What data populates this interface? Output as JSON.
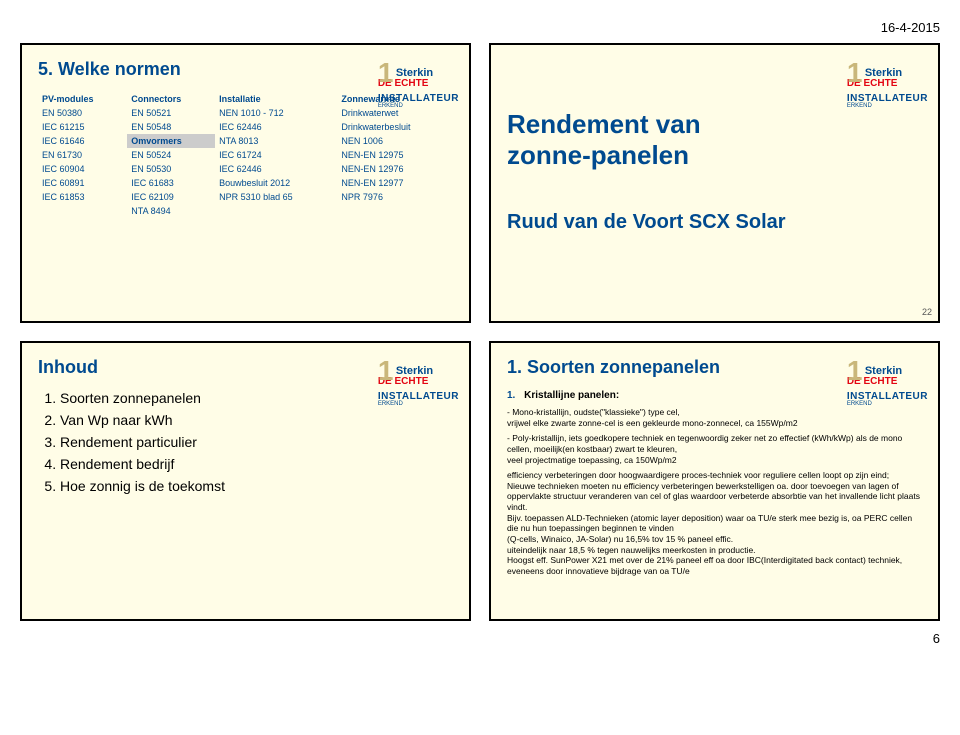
{
  "header": {
    "date": "16-4-2015"
  },
  "logo": {
    "sterkin": "Sterkin",
    "erkend": "ERKEND",
    "line1": "DE ECHTE",
    "line2": "INSTALLATEUR"
  },
  "slide1": {
    "title": "5. Welke normen",
    "columns": [
      "PV-modules",
      "Connectors",
      "Installatie",
      "Zonnewarmte"
    ],
    "rows": [
      [
        "EN 50380",
        "EN 50521",
        "NEN 1010 - 712",
        "Drinkwaterwet"
      ],
      [
        "IEC 61215",
        "EN 50548",
        "IEC 62446",
        "Drinkwaterbesluit"
      ],
      [
        "IEC 61646",
        "Omvormers",
        "NTA 8013",
        "NEN 1006"
      ],
      [
        "EN 61730",
        "EN 50524",
        "IEC 61724",
        "NEN-EN 12975"
      ],
      [
        "IEC 60904",
        "EN 50530",
        "IEC 62446",
        "NEN-EN 12976"
      ],
      [
        "IEC 60891",
        "IEC 61683",
        "Bouwbesluit 2012",
        "NEN-EN 12977"
      ],
      [
        "IEC 61853",
        "IEC 62109",
        "NPR 5310 blad 65",
        "NPR 7976"
      ],
      [
        "",
        "NTA 8494",
        "",
        ""
      ]
    ],
    "highlight_cell": "Omvormers"
  },
  "slide2": {
    "title_line1": "Rendement van",
    "title_line2": "zonne-panelen",
    "subtitle": "Ruud van de Voort SCX Solar",
    "page": "22"
  },
  "slide3": {
    "title": "Inhoud",
    "items": [
      "Soorten zonnepanelen",
      "Van Wp naar kWh",
      "Rendement particulier",
      "Rendement bedrijf",
      "Hoe zonnig is de toekomst"
    ]
  },
  "slide4": {
    "title": "1. Soorten zonnepanelen",
    "head_num": "1.",
    "head_text": "Kristallijne panelen:",
    "p1": "- Mono-kristallijn, oudste(\"klassieke\") type cel,\nvrijwel elke zwarte zonne-cel is een gekleurde mono-zonnecel, ca 155Wp/m2",
    "p2": "- Poly-kristallijn, iets goedkopere techniek en tegenwoordig zeker net zo effectief (kWh/kWp) als de mono cellen, moeilijk(en kostbaar) zwart te kleuren,\nveel projectmatige toepassing, ca 150Wp/m2",
    "p3": "efficiency verbeteringen door hoogwaardigere proces-techniek voor reguliere cellen loopt op zijn eind;\nNieuwe technieken moeten nu efficiency verbeteringen bewerkstelligen oa. door toevoegen van lagen of oppervlakte structuur veranderen van cel of glas waardoor verbeterde absorbtie van het invallende licht plaats vindt.\nBijv. toepassen ALD-Technieken (atomic layer deposition) waar oa TU/e sterk mee bezig is, oa PERC cellen die nu hun toepassingen beginnen te vinden\n(Q-cells, Winaico, JA-Solar) nu 16,5%  tov 15 % paneel effic.\nuiteindelijk naar 18,5 % tegen nauwelijks meerkosten in productie.\nHoogst eff. SunPower X21 met over de 21% paneel eff oa door IBC(Interdigitated back contact) techniek, eveneens door innovatieve bijdrage van oa TU/e"
  },
  "footer": {
    "page": "6"
  },
  "colors": {
    "slide_bg": "#fffde7",
    "brand_blue": "#004a8f",
    "brand_red": "#e30613",
    "logo_gold": "#c9b77a",
    "highlight_bg": "#cccccc"
  }
}
